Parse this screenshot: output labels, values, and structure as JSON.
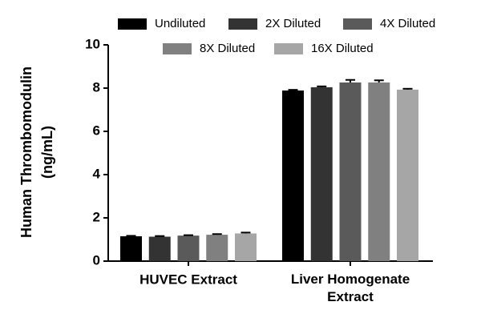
{
  "chart_data": {
    "type": "bar",
    "y_label": [
      "Human Thrombomodulin",
      "(ng/mL)"
    ],
    "categories": [
      "HUVEC Extract",
      "Liver Homogenate Extract"
    ],
    "series": [
      {
        "name": "Undiluted",
        "color": "#000000",
        "values": [
          1.15,
          7.89
        ],
        "errors": [
          0.02,
          0.03
        ]
      },
      {
        "name": "2X Diluted",
        "color": "#333333",
        "values": [
          1.13,
          8.04
        ],
        "errors": [
          0.03,
          0.04
        ]
      },
      {
        "name": "4X Diluted",
        "color": "#5a5a5a",
        "values": [
          1.18,
          8.26
        ],
        "errors": [
          0.02,
          0.12
        ]
      },
      {
        "name": "8X Diluted",
        "color": "#808080",
        "values": [
          1.22,
          8.26
        ],
        "errors": [
          0.03,
          0.1
        ]
      },
      {
        "name": "16X Diluted",
        "color": "#a6a6a6",
        "values": [
          1.28,
          7.93
        ],
        "errors": [
          0.04,
          0.04
        ]
      }
    ],
    "ylim": [
      0,
      10
    ],
    "yticks": [
      0,
      2,
      4,
      6,
      8,
      10
    ]
  }
}
